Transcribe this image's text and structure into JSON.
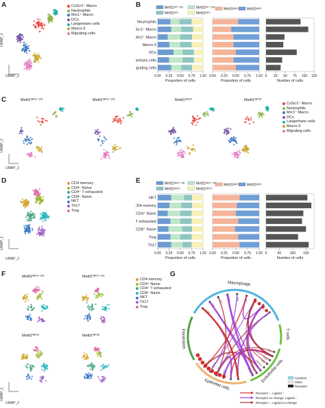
{
  "panels": {
    "A": {
      "label": "A",
      "axis_y": "UMAP_1",
      "axis_x": "UMAP_2",
      "legend": [
        "Cx3cr1⁺ Macro",
        "Neutrophils",
        "Mrc1⁺ Macro",
        "DCs",
        "Langerhans cells",
        "Macro-3",
        "Migrating cells"
      ]
    },
    "B": {
      "label": "B",
      "groups": [
        "Mettl1ᵂᵀ⁻ᶜᴺ¹",
        "Mettl1ᵂᵀ⁻ᶜᴺ²",
        "Mettl1ᵂᵀ¹",
        "Mettl1ᵂᵀ²"
      ],
      "groups2": [
        "Mettl1ᵂᴷᴼ⁻ᶜᴺ",
        "Mettl1ᵂᴷᴼ"
      ],
      "xlabel": "Proportion of cells",
      "xlabel2": "Number of cells"
    },
    "C": {
      "label": "C",
      "axis_y": "UMAP_1",
      "axis_x": "UMAP_2",
      "titles": [
        "Mettl1ᵂᴷᴼ⁻ᶜᴺ¹",
        "Mettl1ᵂᴷᴼ⁻ᶜᴺ²",
        "Mettl1ᵂᴷᴼ¹",
        "Mettl1ᵂᴷᴼ²"
      ],
      "legend": [
        "Cx3cr1⁺ Macro",
        "Neutrophils",
        "Mrc1⁺ Macro",
        "DCs",
        "Langerhans cells",
        "Macro-3",
        "Migrating cells"
      ]
    },
    "D": {
      "label": "D",
      "axis_y": "UMAP_1",
      "axis_x": "UMAP_2",
      "legend": [
        "CD4 memory",
        "CD4⁺ Naïve",
        "CD4⁺ T exhausted",
        "CD8⁺ Naïve",
        "NKT",
        "Th17",
        "Treg"
      ]
    },
    "E": {
      "label": "E",
      "groups": [
        "Mettl1ᵂᴷᴼ⁻ᶜᴺ¹",
        "Mettl1ᵂᴷᴼ⁻ᶜᴺ²",
        "Mettl1ᵂᴷᴼ¹",
        "Mettl1ᵂᴷᴼ²"
      ],
      "groups2": [
        "Mettl1ᵂᴷᴼ⁻ᶜᴺ",
        "Mettl1ᵂᴷᴼ"
      ],
      "xlabel": "Proportion of cells",
      "xlabel2": "Number of cells"
    },
    "F": {
      "label": "F",
      "axis_y": "UMAP_1",
      "axis_x": "UMAP_2",
      "titles": [
        "Mettl1ᵂᴷᴼ⁻ᶜᴺ¹",
        "Mettl1ᵂᴷᴼ⁻ᶜᴺ²",
        "Mettl1ᵂᴷᴼ¹",
        "Mettl1ᵂᴷᴼ²"
      ],
      "legend": [
        "CD4 memory",
        "CD4⁺ Naïve",
        "CD4⁺ T exhausted",
        "CD8⁺ Naïve",
        "NKT",
        "Th17",
        "Treg"
      ]
    },
    "G": {
      "label": "G",
      "sectors": [
        "Macrophage",
        "T cells",
        "Endothelial cells",
        "Epithelial cells",
        "Fibroblasts"
      ],
      "genes_left": [
        "Cd3g",
        "Tnf",
        "Il1b",
        "Itgb1",
        "Mdk",
        "Igf1",
        "Lamb2",
        "App",
        "Dcn"
      ],
      "genes_right": [
        "App",
        "Itgb1",
        "Il1r2",
        "App",
        "Lamb2",
        "Lyl",
        "Hspg2",
        "Sdc4"
      ],
      "genes_bottom": [
        "Ptprs",
        "Cd44",
        "Itgb1",
        "Itga6",
        "Lamb3",
        "Itga4"
      ],
      "legend_type": [
        "Cytokine",
        "Other",
        "Receptor"
      ],
      "legend_lines": [
        "Receptor ↑, Ligand ↑",
        "Receptor no change, Ligand ↑",
        "Receptor ↑, Ligand no change"
      ]
    }
  },
  "chart_data": [
    {
      "type": "bar",
      "id": "B-left",
      "categories": [
        "Neutrophils",
        "Cx3cr1⁺ Macro",
        "Mrc1⁺ Macro",
        "Macro-3",
        "DCs",
        "Langerhans cells",
        "Migrating cells"
      ],
      "series": [
        {
          "values": [
            0.28,
            0.3,
            0.22,
            0.26,
            0.35,
            0.25,
            0.3
          ]
        },
        {
          "values": [
            0.2,
            0.22,
            0.28,
            0.24,
            0.2,
            0.3,
            0.22
          ]
        },
        {
          "values": [
            0.27,
            0.26,
            0.26,
            0.25,
            0.25,
            0.25,
            0.24
          ]
        },
        {
          "values": [
            0.25,
            0.22,
            0.24,
            0.25,
            0.2,
            0.2,
            0.24
          ]
        }
      ],
      "xticks": [
        "0.00",
        "0.25",
        "0.50",
        "0.75",
        "1.00"
      ],
      "colors": [
        "#6b9bd1",
        "#bfe6c7",
        "#8ec6c2",
        "#f7f0b8"
      ]
    },
    {
      "type": "bar",
      "id": "B-mid",
      "categories": [
        "Neutrophils",
        "Cx3cr1⁺ Macro",
        "Mrc1⁺ Macro",
        "Macro-3",
        "DCs",
        "Langerhans cells",
        "Migrating cells"
      ],
      "series": [
        {
          "values": [
            0.55,
            0.4,
            0.45,
            0.45,
            0.5,
            0.45,
            0.5
          ]
        },
        {
          "values": [
            0.45,
            0.6,
            0.55,
            0.55,
            0.5,
            0.55,
            0.5
          ]
        }
      ],
      "xticks": [
        "0.00",
        "0.25",
        "0.50",
        "0.75",
        "1.00"
      ],
      "colors": [
        "#f5b49a",
        "#6f9fd6"
      ]
    },
    {
      "type": "bar",
      "id": "B-right",
      "categories": [
        "Neutrophils",
        "Cx3cr1⁺ Macro",
        "Mrc1⁺ Macro",
        "Macro-3",
        "DCs",
        "Langerhans cells",
        "Migrating cells"
      ],
      "values": [
        90,
        110,
        48,
        45,
        80,
        42,
        38
      ],
      "xticks": [
        "0",
        "25",
        "50",
        "75",
        "100",
        "125"
      ],
      "xlim": [
        0,
        125
      ],
      "colors": [
        "#555555"
      ]
    },
    {
      "type": "bar",
      "id": "E-left",
      "categories": [
        "NKT",
        "CD4 memory",
        "CD4⁺ Naïve",
        "CD4⁺ T exhausted",
        "CD8⁺ Naïve",
        "Treg",
        "Th17"
      ],
      "series": [
        {
          "values": [
            0.3,
            0.26,
            0.22,
            0.28,
            0.24,
            0.28,
            0.3
          ]
        },
        {
          "values": [
            0.28,
            0.26,
            0.28,
            0.22,
            0.3,
            0.22,
            0.25
          ]
        },
        {
          "values": [
            0.18,
            0.24,
            0.25,
            0.25,
            0.22,
            0.25,
            0.2
          ]
        },
        {
          "values": [
            0.24,
            0.24,
            0.25,
            0.25,
            0.24,
            0.25,
            0.25
          ]
        }
      ],
      "xticks": [
        "0.00",
        "0.25",
        "0.50",
        "0.75",
        "1.00"
      ],
      "colors": [
        "#6b9bd1",
        "#bfe6c7",
        "#8ec6c2",
        "#f7f0b8"
      ]
    },
    {
      "type": "bar",
      "id": "E-mid",
      "categories": [
        "NKT",
        "CD4 memory",
        "CD4⁺ Naïve",
        "CD4⁺ T exhausted",
        "CD8⁺ Naïve",
        "Treg",
        "Th17"
      ],
      "series": [
        {
          "values": [
            0.58,
            0.52,
            0.5,
            0.55,
            0.48,
            0.55,
            0.58
          ]
        },
        {
          "values": [
            0.42,
            0.48,
            0.5,
            0.45,
            0.52,
            0.45,
            0.42
          ]
        }
      ],
      "xticks": [
        "0.00",
        "0.25",
        "0.50",
        "0.75",
        "1.00"
      ],
      "colors": [
        "#f5b49a",
        "#6f9fd6"
      ]
    },
    {
      "type": "bar",
      "id": "E-right",
      "categories": [
        "NKT",
        "CD4 memory",
        "CD4⁺ Naïve",
        "CD4⁺ T exhausted",
        "CD8⁺ Naïve",
        "Treg",
        "Th17"
      ],
      "values": [
        155,
        170,
        140,
        135,
        150,
        120,
        160
      ],
      "xticks": [
        "0",
        "50",
        "100",
        "150"
      ],
      "xlim": [
        0,
        180
      ],
      "colors": [
        "#555555"
      ]
    }
  ],
  "colors": {
    "clusters7": [
      "#e8403a",
      "#8db44a",
      "#3a78c2",
      "#7b56a7",
      "#22b3a7",
      "#c9a227",
      "#e377c2"
    ],
    "tcell7": [
      "#d3a42a",
      "#9cba3a",
      "#45a27a",
      "#29b6c1",
      "#3d7cc9",
      "#9f63c4",
      "#e16aa8"
    ]
  }
}
